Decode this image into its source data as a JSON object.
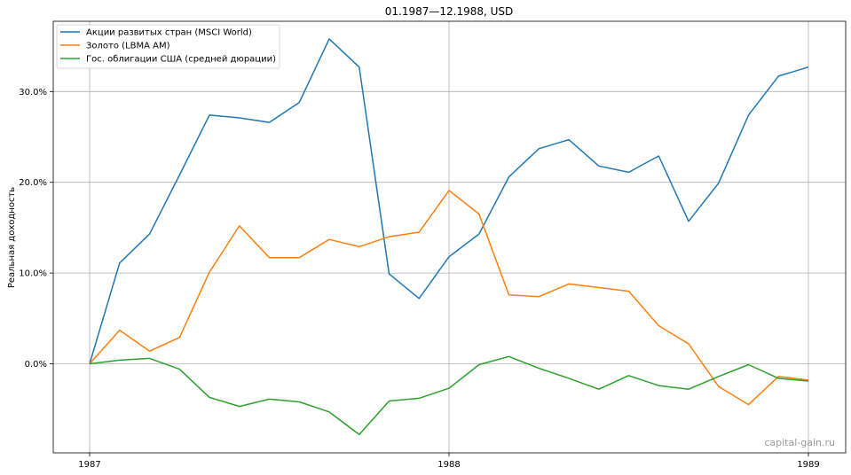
{
  "chart_data": {
    "type": "line",
    "title": "01.1987—12.1988, USD",
    "ylabel": "Реальная доходность",
    "xlabel": "",
    "x_ticks": [
      "1987",
      "1988",
      "1989"
    ],
    "y_ticks": [
      "0.0%",
      "10.0%",
      "20.0%",
      "30.0%"
    ],
    "ylim": [
      -10,
      38
    ],
    "grid": true,
    "legend_position": "top-left",
    "x": [
      "1987-01",
      "1987-02",
      "1987-03",
      "1987-04",
      "1987-05",
      "1987-06",
      "1987-07",
      "1987-08",
      "1987-09",
      "1987-10",
      "1987-11",
      "1987-12",
      "1988-01",
      "1988-02",
      "1988-03",
      "1988-04",
      "1988-05",
      "1988-06",
      "1988-07",
      "1988-08",
      "1988-09",
      "1988-10",
      "1988-11",
      "1988-12",
      "1989-01"
    ],
    "series": [
      {
        "name": "Акции развитых стран (MSCI World)",
        "color": "#1f77b4",
        "values": [
          0.0,
          11.1,
          14.3,
          20.8,
          27.4,
          27.1,
          26.6,
          28.8,
          35.8,
          32.7,
          9.9,
          7.2,
          11.8,
          14.3,
          20.6,
          23.7,
          24.7,
          21.8,
          21.1,
          22.9,
          15.7,
          19.9,
          27.4,
          31.7,
          32.7
        ]
      },
      {
        "name": "Золото (LBMA AM)",
        "color": "#ff7f0e",
        "values": [
          0.0,
          3.7,
          1.4,
          2.9,
          10.1,
          15.2,
          11.7,
          11.7,
          13.7,
          12.9,
          14.0,
          14.5,
          19.1,
          16.5,
          7.6,
          7.4,
          8.8,
          8.4,
          8.0,
          4.2,
          2.2,
          -2.5,
          -4.5,
          -1.4,
          -1.8
        ]
      },
      {
        "name": "Гос. облигации США (средней дюрации)",
        "color": "#2ca02c",
        "values": [
          0.0,
          0.4,
          0.6,
          -0.6,
          -3.7,
          -4.7,
          -3.9,
          -4.2,
          -5.3,
          -7.8,
          -4.1,
          -3.8,
          -2.7,
          -0.1,
          0.8,
          -0.5,
          -1.6,
          -2.8,
          -1.3,
          -2.4,
          -2.8,
          -1.4,
          -0.1,
          -1.6,
          -1.9
        ]
      }
    ],
    "watermark": "capital-gain.ru"
  }
}
